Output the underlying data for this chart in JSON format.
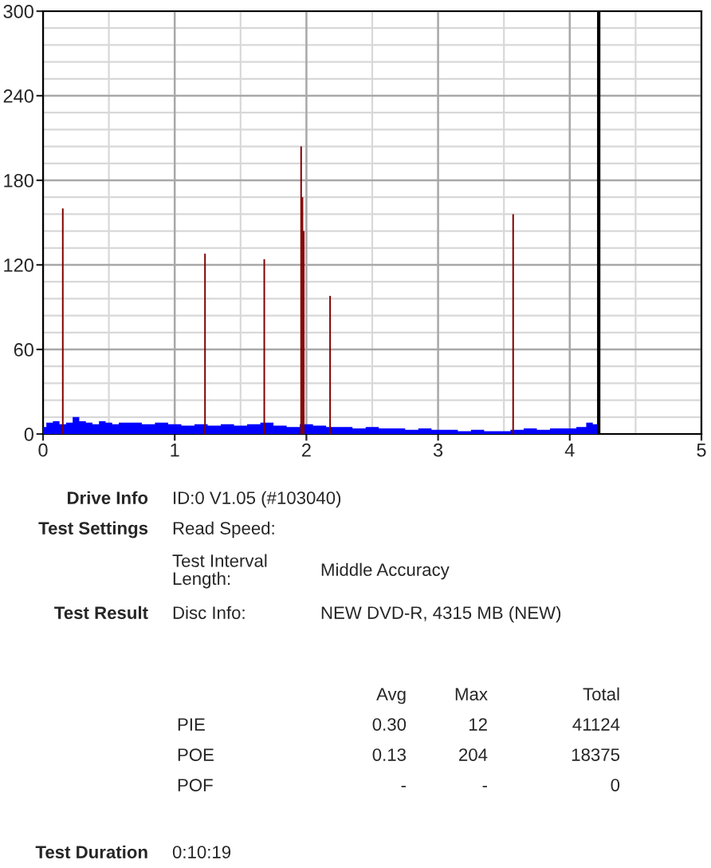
{
  "chart_data": {
    "type": "area",
    "series": [
      {
        "color": "#0000ff",
        "x": [
          0,
          0.05,
          0.1,
          0.15,
          0.2,
          0.25,
          0.3,
          0.35,
          0.4,
          0.45,
          0.5,
          0.55,
          0.6,
          0.7,
          0.8,
          0.9,
          1.0,
          1.1,
          1.2,
          1.3,
          1.4,
          1.5,
          1.6,
          1.7,
          1.8,
          1.9,
          2.0,
          2.1,
          2.2,
          2.3,
          2.4,
          2.5,
          2.6,
          2.7,
          2.8,
          2.9,
          3.0,
          3.1,
          3.2,
          3.3,
          3.4,
          3.5,
          3.6,
          3.7,
          3.8,
          3.9,
          4.0,
          4.1,
          4.15,
          4.2,
          4.22
        ],
        "values": [
          5,
          8,
          9,
          7,
          8,
          12,
          9,
          8,
          7,
          9,
          8,
          7,
          8,
          8,
          7,
          8,
          7,
          6,
          7,
          6,
          7,
          6,
          7,
          8,
          6,
          5,
          7,
          6,
          5,
          5,
          4,
          5,
          4,
          4,
          3,
          4,
          3,
          3,
          2,
          3,
          2,
          2,
          3,
          4,
          3,
          4,
          4,
          5,
          8,
          7,
          6
        ]
      },
      {
        "type": "bar",
        "color": "#800000",
        "x": [
          0.15,
          1.23,
          1.68,
          1.96,
          1.97,
          1.98,
          2.18,
          3.57
        ],
        "values": [
          160,
          128,
          124,
          204,
          168,
          144,
          98,
          156
        ]
      }
    ],
    "xlim": [
      0,
      5
    ],
    "xticks": [
      0,
      1,
      2,
      3,
      4,
      5
    ],
    "ylim": [
      0,
      300
    ],
    "yticks": [
      0,
      60,
      120,
      180,
      240,
      300
    ],
    "grid": true,
    "ref_lines": [
      {
        "axis": "x",
        "value": 4.22,
        "color": "#000000"
      }
    ],
    "annotations": [
      "Drive Info",
      "ID:0 V1.05 (#103040)",
      "Test Settings",
      "Read Speed:",
      "Test Interval\nLength:",
      "Middle Accuracy",
      "Test Result",
      "Disc Info:",
      "NEW DVD-R, 4315 MB (NEW)",
      "Avg",
      "Max",
      "Total",
      "PIE",
      "0.30",
      "12",
      "41124",
      "POE",
      "0.13",
      "204",
      "18375",
      "POF",
      "-",
      "-",
      "0",
      "Test Duration",
      "0:10:19"
    ]
  }
}
